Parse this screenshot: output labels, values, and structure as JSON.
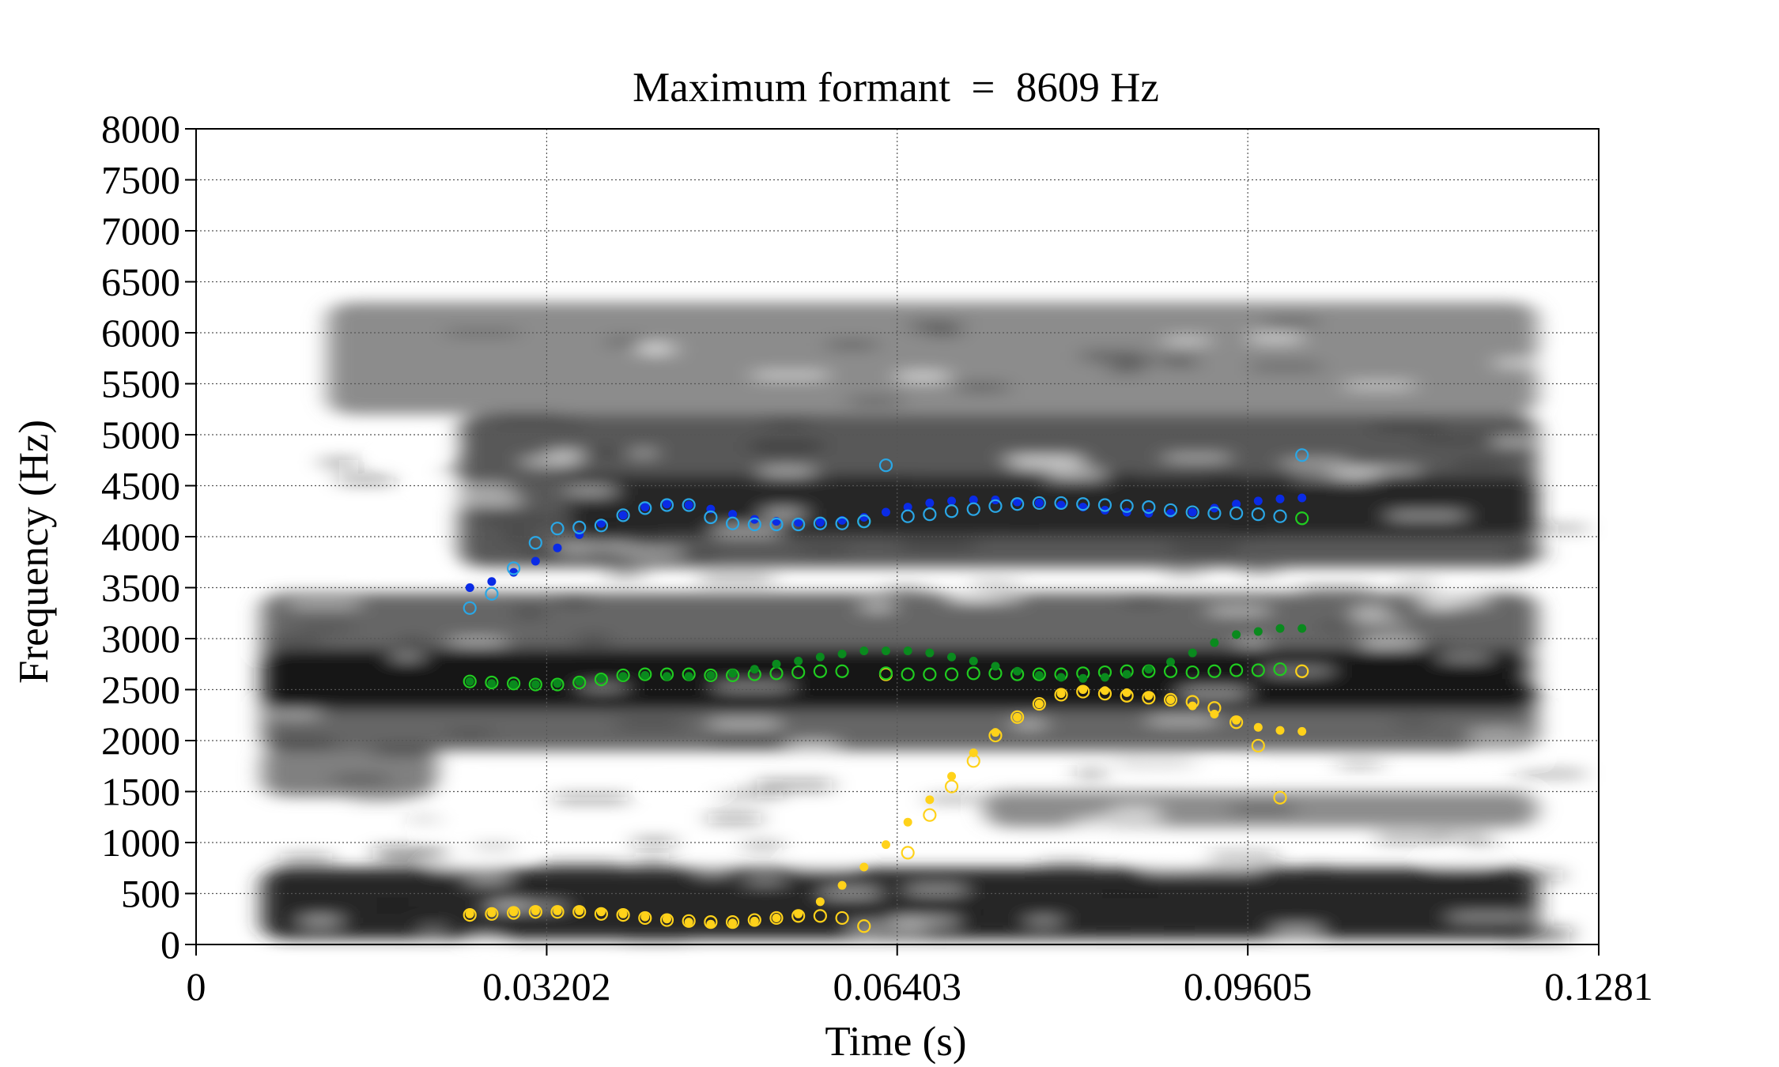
{
  "chart_data": {
    "type": "scatter",
    "title": "Maximum formant  =  8609 Hz",
    "xlabel": "Time (s)",
    "ylabel": "Frequency (Hz)",
    "xlim": [
      0,
      0.1281
    ],
    "ylim": [
      0,
      8000
    ],
    "x_ticks": [
      "0",
      "0.03202",
      "0.06403",
      "0.09605",
      "0.1281"
    ],
    "x_tick_values": [
      0,
      0.03202,
      0.06403,
      0.09605,
      0.1281
    ],
    "y_ticks": [
      "0",
      "500",
      "1000",
      "1500",
      "2000",
      "2500",
      "3000",
      "3500",
      "4000",
      "4500",
      "5000",
      "5500",
      "6000",
      "6500",
      "7000",
      "7500",
      "8000"
    ],
    "y_tick_values": [
      0,
      500,
      1000,
      1500,
      2000,
      2500,
      3000,
      3500,
      4000,
      4500,
      5000,
      5500,
      6000,
      6500,
      7000,
      7500,
      8000
    ],
    "grid": true,
    "background": "grayscale spectrogram",
    "spectrogram_time_range": [
      0.006,
      0.1225
    ],
    "spectrogram_bands": [
      {
        "from": 50,
        "to": 750,
        "t_start": 0.006,
        "t_end": 0.1225,
        "darkness": 0.85
      },
      {
        "from": 1450,
        "to": 1950,
        "t_start": 0.006,
        "t_end": 0.022,
        "darkness": 0.5
      },
      {
        "from": 1150,
        "to": 1500,
        "t_start": 0.072,
        "t_end": 0.1225,
        "darkness": 0.45
      },
      {
        "from": 1900,
        "to": 3450,
        "t_start": 0.006,
        "t_end": 0.1225,
        "darkness": 0.6
      },
      {
        "from": 2300,
        "to": 2900,
        "t_start": 0.006,
        "t_end": 0.1225,
        "darkness": 0.9
      },
      {
        "from": 3700,
        "to": 5200,
        "t_start": 0.024,
        "t_end": 0.1225,
        "darkness": 0.65
      },
      {
        "from": 4000,
        "to": 4600,
        "t_start": 0.034,
        "t_end": 0.1225,
        "darkness": 0.85
      },
      {
        "from": 5200,
        "to": 6300,
        "t_start": 0.012,
        "t_end": 0.1225,
        "darkness": 0.45
      }
    ],
    "series": [
      {
        "color": "#ffd21a",
        "marker": "filled",
        "x": [
          0.025,
          0.027,
          0.029,
          0.031,
          0.033,
          0.035,
          0.037,
          0.039,
          0.041,
          0.043,
          0.045,
          0.047,
          0.049,
          0.051,
          0.053,
          0.055,
          0.057,
          0.059,
          0.061,
          0.063,
          0.065,
          0.067,
          0.069,
          0.071,
          0.073,
          0.075,
          0.077,
          0.079,
          0.081,
          0.083,
          0.085,
          0.087,
          0.089,
          0.091,
          0.093,
          0.095,
          0.097,
          0.099,
          0.101
        ],
        "y": [
          300,
          310,
          320,
          330,
          330,
          330,
          320,
          300,
          270,
          250,
          220,
          200,
          210,
          230,
          260,
          300,
          420,
          580,
          760,
          980,
          1200,
          1420,
          1650,
          1880,
          2080,
          2230,
          2360,
          2460,
          2500,
          2490,
          2470,
          2440,
          2400,
          2340,
          2260,
          2200,
          2130,
          2100,
          2090
        ]
      },
      {
        "color": "#ffd21a",
        "marker": "hollow",
        "x": [
          0.025,
          0.027,
          0.029,
          0.031,
          0.033,
          0.035,
          0.037,
          0.039,
          0.041,
          0.043,
          0.045,
          0.047,
          0.049,
          0.051,
          0.053,
          0.055,
          0.057,
          0.059,
          0.061,
          0.063,
          0.065,
          0.067,
          0.069,
          0.071,
          0.073,
          0.075,
          0.077,
          0.079,
          0.081,
          0.083,
          0.085,
          0.087,
          0.089,
          0.091,
          0.093,
          0.095,
          0.097,
          0.099,
          0.101
        ],
        "y": [
          290,
          300,
          310,
          320,
          320,
          320,
          300,
          290,
          260,
          240,
          230,
          220,
          220,
          240,
          260,
          280,
          280,
          260,
          180,
          2650,
          900,
          1270,
          1550,
          1800,
          2050,
          2230,
          2360,
          2450,
          2480,
          2460,
          2440,
          2420,
          2400,
          2380,
          2320,
          2180,
          1950,
          1440,
          2680
        ]
      },
      {
        "color": "#20cc20",
        "marker": "hollow",
        "x": [
          0.025,
          0.027,
          0.029,
          0.031,
          0.033,
          0.035,
          0.037,
          0.039,
          0.041,
          0.043,
          0.045,
          0.047,
          0.049,
          0.051,
          0.053,
          0.055,
          0.057,
          0.059,
          0.061,
          0.063,
          0.065,
          0.067,
          0.069,
          0.071,
          0.073,
          0.075,
          0.077,
          0.079,
          0.081,
          0.083,
          0.085,
          0.087,
          0.089,
          0.091,
          0.093,
          0.095,
          0.097,
          0.099,
          0.101
        ],
        "y": [
          2580,
          2570,
          2560,
          2550,
          2550,
          2570,
          2600,
          2640,
          2650,
          2650,
          2650,
          2640,
          2640,
          2650,
          2660,
          2670,
          2680,
          2680,
          4150,
          2660,
          2650,
          2650,
          2650,
          2660,
          2660,
          2650,
          2650,
          2650,
          2660,
          2670,
          2680,
          2680,
          2680,
          2670,
          2680,
          2690,
          2690,
          2700,
          4180
        ]
      },
      {
        "color": "#0a8a1e",
        "marker": "filled",
        "x": [
          0.025,
          0.027,
          0.029,
          0.031,
          0.033,
          0.035,
          0.037,
          0.039,
          0.041,
          0.043,
          0.045,
          0.047,
          0.049,
          0.051,
          0.053,
          0.055,
          0.057,
          0.059,
          0.061,
          0.063,
          0.065,
          0.067,
          0.069,
          0.071,
          0.073,
          0.075,
          0.077,
          0.079,
          0.081,
          0.083,
          0.085,
          0.087,
          0.089,
          0.091,
          0.093,
          0.095,
          0.097,
          0.099,
          0.101
        ],
        "y": [
          2580,
          2560,
          2550,
          2550,
          2560,
          2580,
          2610,
          2630,
          2640,
          2630,
          2630,
          2640,
          2660,
          2700,
          2750,
          2780,
          2820,
          2850,
          2880,
          2880,
          2880,
          2860,
          2820,
          2780,
          2730,
          2680,
          2640,
          2620,
          2610,
          2620,
          2650,
          2700,
          2770,
          2860,
          2960,
          3040,
          3070,
          3100,
          3100
        ]
      },
      {
        "color": "#0a2be6",
        "marker": "filled",
        "x": [
          0.025,
          0.027,
          0.029,
          0.031,
          0.033,
          0.035,
          0.037,
          0.039,
          0.041,
          0.043,
          0.045,
          0.047,
          0.049,
          0.051,
          0.053,
          0.055,
          0.057,
          0.059,
          0.061,
          0.063,
          0.065,
          0.067,
          0.069,
          0.071,
          0.073,
          0.075,
          0.077,
          0.079,
          0.081,
          0.083,
          0.085,
          0.087,
          0.089,
          0.091,
          0.093,
          0.095,
          0.097,
          0.099,
          0.101
        ],
        "y": [
          3500,
          3560,
          3650,
          3760,
          3890,
          4020,
          4130,
          4210,
          4290,
          4320,
          4310,
          4270,
          4220,
          4170,
          4150,
          4140,
          4140,
          4160,
          4190,
          4240,
          4290,
          4330,
          4350,
          4360,
          4360,
          4340,
          4330,
          4310,
          4290,
          4260,
          4240,
          4230,
          4230,
          4240,
          4280,
          4320,
          4350,
          4370,
          4380
        ]
      },
      {
        "color": "#2aa7e6",
        "marker": "hollow",
        "x": [
          0.025,
          0.027,
          0.029,
          0.031,
          0.033,
          0.035,
          0.037,
          0.039,
          0.041,
          0.043,
          0.045,
          0.047,
          0.049,
          0.051,
          0.053,
          0.055,
          0.057,
          0.059,
          0.061,
          0.063,
          0.065,
          0.067,
          0.069,
          0.071,
          0.073,
          0.075,
          0.077,
          0.079,
          0.081,
          0.083,
          0.085,
          0.087,
          0.089,
          0.091,
          0.093,
          0.095,
          0.097,
          0.099,
          0.101
        ],
        "y": [
          3300,
          3440,
          3690,
          3940,
          4080,
          4090,
          4110,
          4210,
          4280,
          4310,
          4310,
          4190,
          4130,
          4120,
          4120,
          4120,
          4130,
          4130,
          4150,
          4700,
          4200,
          4220,
          4250,
          4270,
          4300,
          4320,
          4330,
          4330,
          4320,
          4310,
          4300,
          4290,
          4260,
          4240,
          4230,
          4230,
          4220,
          4200,
          4800
        ]
      }
    ]
  }
}
